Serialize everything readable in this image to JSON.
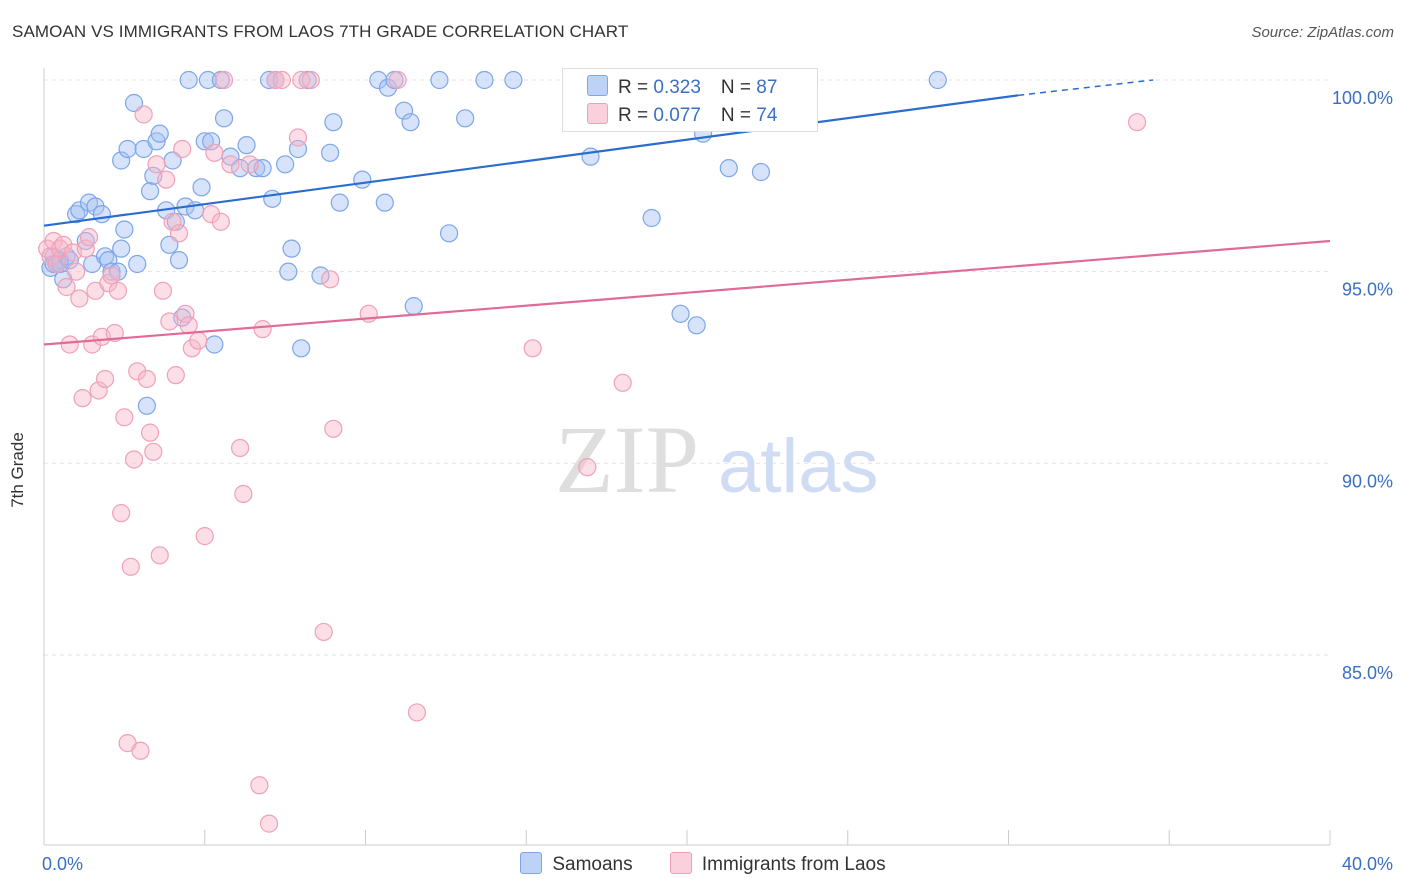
{
  "header": {
    "title": "SAMOAN VS IMMIGRANTS FROM LAOS 7TH GRADE CORRELATION CHART",
    "source": "Source: ZipAtlas.com"
  },
  "legend_box": {
    "rows": [
      {
        "r_label": "R = ",
        "r_value": "0.323",
        "n_label": "N = ",
        "n_value": "87",
        "color": "#a4c2f4"
      },
      {
        "r_label": "R = ",
        "r_value": "0.077",
        "n_label": "N = ",
        "n_value": "74",
        "color": "#f7b6c8"
      }
    ]
  },
  "bottom_legend": {
    "items": [
      {
        "label": "Samoans",
        "color": "#a4c2f4"
      },
      {
        "label": "Immigrants from Laos",
        "color": "#f7b6c8"
      }
    ]
  },
  "watermark": {
    "zip": "ZIP",
    "atlas": "atlas"
  },
  "chart_data": {
    "type": "scatter",
    "title": "SAMOAN VS IMMIGRANTS FROM LAOS 7TH GRADE CORRELATION CHART",
    "xlabel": "",
    "ylabel": "7th Grade",
    "xlim": [
      0,
      40
    ],
    "ylim": [
      80.5,
      100.3
    ],
    "x_tick_labels": [
      {
        "value": 0,
        "label": "0.0%"
      },
      {
        "value": 40,
        "label": "40.0%"
      }
    ],
    "y_tick_labels": [
      {
        "value": 100,
        "label": "100.0%"
      },
      {
        "value": 95,
        "label": "95.0%"
      },
      {
        "value": 90,
        "label": "90.0%"
      },
      {
        "value": 85,
        "label": "85.0%"
      }
    ],
    "grid": true,
    "legend_position": "top-center",
    "series": [
      {
        "name": "Samoans",
        "color": "#7ea6e8",
        "fill": "#a4c2f4",
        "trend": {
          "x0": 0,
          "y0": 96.2,
          "x1": 30.3,
          "y1": 99.6,
          "dash_to_x": 34.5,
          "dash_to_y": 100.0,
          "color": "#2b6ccf"
        },
        "points": [
          [
            0.2,
            95.1
          ],
          [
            0.3,
            95.4
          ],
          [
            0.4,
            95.2
          ],
          [
            0.5,
            95.3
          ],
          [
            0.3,
            95.2
          ],
          [
            0.6,
            94.8
          ],
          [
            0.5,
            95.2
          ],
          [
            0.7,
            95.4
          ],
          [
            0.8,
            95.3
          ],
          [
            1.0,
            96.5
          ],
          [
            1.1,
            96.6
          ],
          [
            1.3,
            95.8
          ],
          [
            1.4,
            96.8
          ],
          [
            1.5,
            95.2
          ],
          [
            1.6,
            96.7
          ],
          [
            1.8,
            96.5
          ],
          [
            1.9,
            95.4
          ],
          [
            2.0,
            95.3
          ],
          [
            2.1,
            95.0
          ],
          [
            2.3,
            95.0
          ],
          [
            2.4,
            95.6
          ],
          [
            2.5,
            96.1
          ],
          [
            2.4,
            97.9
          ],
          [
            2.6,
            98.2
          ],
          [
            2.8,
            99.4
          ],
          [
            2.9,
            95.2
          ],
          [
            3.1,
            98.2
          ],
          [
            3.2,
            91.5
          ],
          [
            3.3,
            97.1
          ],
          [
            3.4,
            97.5
          ],
          [
            3.5,
            98.4
          ],
          [
            3.6,
            98.6
          ],
          [
            3.8,
            96.6
          ],
          [
            3.9,
            95.7
          ],
          [
            4.0,
            97.9
          ],
          [
            4.1,
            96.3
          ],
          [
            4.2,
            95.3
          ],
          [
            4.3,
            93.8
          ],
          [
            4.4,
            96.7
          ],
          [
            4.5,
            100.0
          ],
          [
            4.7,
            96.6
          ],
          [
            4.9,
            97.2
          ],
          [
            5.0,
            98.4
          ],
          [
            5.1,
            100.0
          ],
          [
            5.2,
            98.4
          ],
          [
            5.3,
            93.1
          ],
          [
            5.5,
            100.0
          ],
          [
            5.6,
            99.0
          ],
          [
            5.8,
            98.0
          ],
          [
            6.1,
            97.7
          ],
          [
            6.3,
            98.3
          ],
          [
            6.6,
            97.7
          ],
          [
            6.8,
            97.7
          ],
          [
            7.0,
            100.0
          ],
          [
            7.1,
            96.9
          ],
          [
            7.2,
            100.0
          ],
          [
            7.5,
            97.8
          ],
          [
            7.6,
            95.0
          ],
          [
            7.7,
            95.6
          ],
          [
            7.9,
            98.2
          ],
          [
            8.0,
            93.0
          ],
          [
            8.2,
            100.0
          ],
          [
            8.6,
            94.9
          ],
          [
            8.9,
            98.1
          ],
          [
            9.0,
            98.9
          ],
          [
            9.2,
            96.8
          ],
          [
            9.9,
            97.4
          ],
          [
            10.4,
            100.0
          ],
          [
            10.6,
            96.8
          ],
          [
            10.7,
            99.8
          ],
          [
            10.9,
            100.0
          ],
          [
            11.2,
            99.2
          ],
          [
            11.4,
            98.9
          ],
          [
            11.5,
            94.1
          ],
          [
            12.3,
            100.0
          ],
          [
            12.6,
            96.0
          ],
          [
            13.1,
            99.0
          ],
          [
            13.7,
            100.0
          ],
          [
            14.6,
            100.0
          ],
          [
            17.0,
            98.0
          ],
          [
            18.9,
            96.4
          ],
          [
            19.8,
            93.9
          ],
          [
            20.3,
            93.6
          ],
          [
            20.5,
            98.6
          ],
          [
            21.3,
            97.7
          ],
          [
            22.3,
            97.6
          ],
          [
            27.8,
            100.0
          ]
        ]
      },
      {
        "name": "Immigrants from Laos",
        "color": "#f0a0b8",
        "fill": "#f7b6c8",
        "trend": {
          "x0": 0,
          "y0": 93.1,
          "x1": 40,
          "y1": 95.8,
          "color": "#e06b98"
        },
        "points": [
          [
            0.1,
            95.6
          ],
          [
            0.2,
            95.4
          ],
          [
            0.3,
            95.8
          ],
          [
            0.4,
            95.2
          ],
          [
            0.5,
            95.6
          ],
          [
            0.6,
            95.7
          ],
          [
            0.7,
            94.6
          ],
          [
            0.8,
            93.1
          ],
          [
            0.9,
            95.5
          ],
          [
            1.0,
            95.0
          ],
          [
            1.1,
            94.3
          ],
          [
            1.2,
            91.7
          ],
          [
            1.3,
            95.6
          ],
          [
            1.4,
            95.9
          ],
          [
            1.5,
            93.1
          ],
          [
            1.6,
            94.5
          ],
          [
            1.7,
            91.9
          ],
          [
            1.8,
            93.3
          ],
          [
            1.9,
            92.2
          ],
          [
            2.0,
            94.7
          ],
          [
            2.1,
            94.9
          ],
          [
            2.2,
            93.4
          ],
          [
            2.3,
            94.5
          ],
          [
            2.4,
            88.7
          ],
          [
            2.5,
            91.2
          ],
          [
            2.6,
            82.7
          ],
          [
            2.7,
            87.3
          ],
          [
            2.8,
            90.1
          ],
          [
            2.9,
            92.4
          ],
          [
            3.0,
            82.5
          ],
          [
            3.1,
            99.1
          ],
          [
            3.2,
            92.2
          ],
          [
            3.3,
            90.8
          ],
          [
            3.4,
            90.3
          ],
          [
            3.5,
            97.8
          ],
          [
            3.6,
            87.6
          ],
          [
            3.7,
            94.5
          ],
          [
            3.8,
            97.4
          ],
          [
            3.9,
            93.7
          ],
          [
            4.0,
            96.3
          ],
          [
            4.1,
            92.3
          ],
          [
            4.2,
            96.0
          ],
          [
            4.3,
            98.2
          ],
          [
            4.4,
            93.9
          ],
          [
            4.5,
            93.6
          ],
          [
            4.6,
            93.0
          ],
          [
            4.8,
            93.2
          ],
          [
            5.0,
            88.1
          ],
          [
            5.2,
            96.5
          ],
          [
            5.3,
            98.1
          ],
          [
            5.5,
            96.3
          ],
          [
            5.6,
            100.0
          ],
          [
            5.8,
            97.8
          ],
          [
            6.1,
            90.4
          ],
          [
            6.2,
            89.2
          ],
          [
            6.4,
            97.8
          ],
          [
            6.7,
            81.6
          ],
          [
            6.8,
            93.5
          ],
          [
            7.0,
            80.6
          ],
          [
            7.2,
            100.0
          ],
          [
            7.4,
            100.0
          ],
          [
            7.9,
            98.5
          ],
          [
            8.0,
            100.0
          ],
          [
            8.3,
            100.0
          ],
          [
            8.7,
            85.6
          ],
          [
            8.9,
            94.8
          ],
          [
            9.0,
            90.9
          ],
          [
            10.1,
            93.9
          ],
          [
            11.0,
            100.0
          ],
          [
            11.6,
            83.5
          ],
          [
            15.2,
            93.0
          ],
          [
            16.9,
            89.9
          ],
          [
            18.0,
            92.1
          ],
          [
            34.0,
            98.9
          ]
        ]
      }
    ]
  }
}
